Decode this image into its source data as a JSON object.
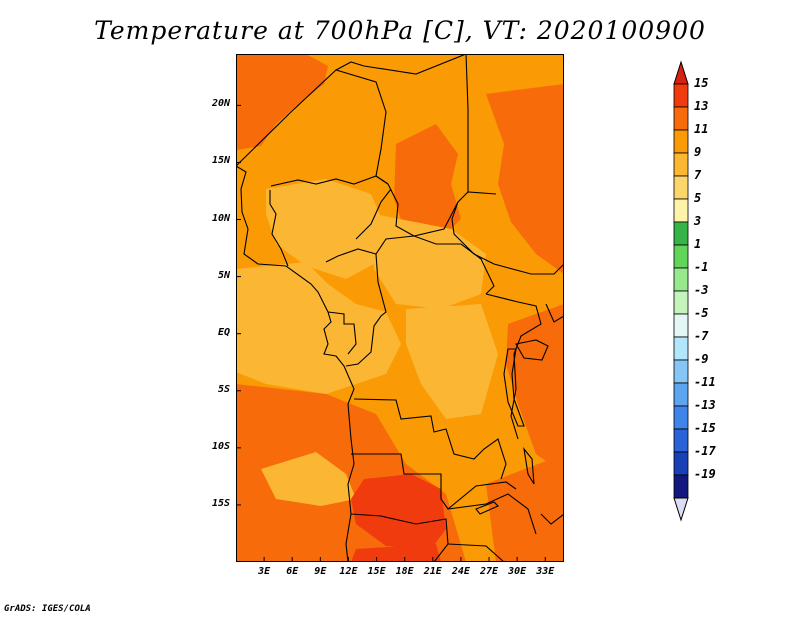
{
  "title": "Temperature at 700hPa [C], VT: 2020100900",
  "credit": "GrADS: IGES/COLA",
  "map": {
    "latitude_labels": [
      "20N",
      "15N",
      "10N",
      "5N",
      "EQ",
      "5S",
      "10S",
      "15S"
    ],
    "latitude_values": [
      20,
      15,
      10,
      5,
      0,
      -5,
      -10,
      -15
    ],
    "longitude_labels": [
      "3E",
      "6E",
      "9E",
      "12E",
      "15E",
      "18E",
      "21E",
      "24E",
      "27E",
      "30E",
      "33E"
    ],
    "longitude_values": [
      3,
      6,
      9,
      12,
      15,
      18,
      21,
      24,
      27,
      30,
      33
    ],
    "lat_range": [
      -20,
      24.5
    ],
    "lon_range": [
      0,
      35
    ]
  },
  "colorbar": {
    "labels": [
      "15",
      "13",
      "11",
      "9",
      "7",
      "5",
      "3",
      "1",
      "-1",
      "-3",
      "-5",
      "-7",
      "-9",
      "-11",
      "-13",
      "-15",
      "-17",
      "-19"
    ],
    "colors": [
      "#f03b0e",
      "#f76b0a",
      "#fa9a05",
      "#fbb733",
      "#fcd66b",
      "#fdf3a9",
      "#37b447",
      "#63d45a",
      "#97e98d",
      "#c4f3bc",
      "#e3f8f4",
      "#b2e6fb",
      "#86c6f6",
      "#5ea5f0",
      "#3f84e8",
      "#2a62d8",
      "#1841b8",
      "#12187e"
    ],
    "top_color": "#d62210",
    "bottom_color": "#dcdcf2"
  }
}
